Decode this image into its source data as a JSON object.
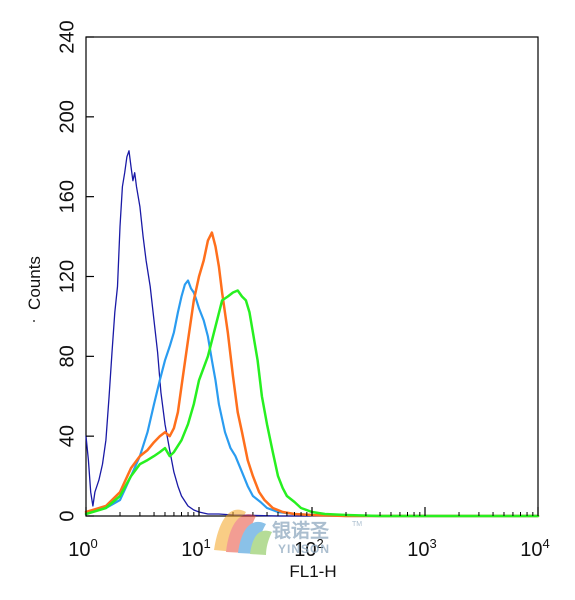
{
  "chart_data": {
    "type": "line",
    "xscale": "log",
    "xlim": [
      1,
      10000
    ],
    "ylim": [
      0,
      240
    ],
    "xlabel": "FL1-H",
    "ylabel": "Counts",
    "y_ticks": [
      0,
      40,
      80,
      120,
      160,
      200,
      240
    ],
    "x_ticks": [
      {
        "value": 1,
        "base": "10",
        "exp": "0"
      },
      {
        "value": 10,
        "base": "10",
        "exp": "1"
      },
      {
        "value": 100,
        "base": "10",
        "exp": "2"
      },
      {
        "value": 1000,
        "base": "10",
        "exp": "3"
      },
      {
        "value": 10000,
        "base": "10",
        "exp": "4"
      }
    ],
    "series": [
      {
        "color": "#1a1aa6",
        "width": 1.3,
        "x": [
          1,
          1.05,
          1.1,
          1.15,
          1.2,
          1.3,
          1.4,
          1.5,
          1.6,
          1.7,
          1.8,
          1.9,
          2.0,
          2.1,
          2.2,
          2.3,
          2.4,
          2.5,
          2.6,
          2.7,
          2.8,
          3.0,
          3.2,
          3.4,
          3.7,
          4.0,
          4.3,
          4.6,
          5.0,
          5.5,
          6.0,
          6.5,
          7.0,
          8.0,
          9.0,
          10,
          12,
          15,
          20,
          30,
          50,
          100,
          1000,
          10000
        ],
        "y": [
          40,
          28,
          12,
          5,
          12,
          18,
          26,
          38,
          60,
          82,
          102,
          115,
          145,
          165,
          172,
          180,
          183,
          175,
          168,
          172,
          165,
          155,
          140,
          128,
          115,
          98,
          82,
          62,
          46,
          33,
          22,
          15,
          10,
          5,
          3,
          2,
          1,
          1,
          0.5,
          0.3,
          0,
          0,
          0,
          0
        ]
      },
      {
        "color": "#2a9cf0",
        "width": 2.2,
        "x": [
          1,
          1.5,
          2,
          2.5,
          3,
          3.5,
          4,
          4.5,
          5,
          5.5,
          6,
          6.5,
          7,
          7.5,
          8,
          8.5,
          9,
          9.5,
          10,
          11,
          12,
          13,
          14,
          15,
          17,
          19,
          21,
          24,
          27,
          30,
          35,
          40,
          50,
          70,
          100,
          200,
          1000,
          10000
        ],
        "y": [
          2,
          4,
          8,
          20,
          30,
          42,
          56,
          68,
          78,
          85,
          92,
          102,
          110,
          116,
          118,
          114,
          112,
          108,
          104,
          98,
          90,
          78,
          68,
          56,
          42,
          34,
          30,
          22,
          15,
          10,
          7,
          4,
          2,
          1,
          0.5,
          0,
          0,
          0
        ]
      },
      {
        "color": "#ff6f1c",
        "width": 2.5,
        "x": [
          1,
          1.5,
          2,
          2.5,
          3,
          3.5,
          4,
          4.5,
          5,
          5.5,
          6,
          6.5,
          7,
          8,
          9,
          10,
          11,
          12,
          13,
          14,
          15,
          16,
          18,
          20,
          22,
          24,
          27,
          30,
          34,
          38,
          45,
          55,
          70,
          100,
          200,
          1000,
          10000
        ],
        "y": [
          2,
          5,
          12,
          24,
          30,
          33,
          37,
          40,
          42,
          40,
          44,
          52,
          65,
          88,
          108,
          120,
          128,
          138,
          142,
          135,
          125,
          112,
          92,
          70,
          52,
          42,
          28,
          20,
          12,
          8,
          4,
          2,
          1,
          0.5,
          0,
          0,
          0
        ]
      },
      {
        "color": "#27f020",
        "width": 2.5,
        "x": [
          1,
          1.5,
          2,
          2.5,
          3,
          3.5,
          4,
          4.5,
          5,
          5.5,
          6,
          7,
          8,
          9,
          10,
          12,
          14,
          16,
          18,
          20,
          22,
          24,
          26,
          28,
          30,
          33,
          36,
          40,
          45,
          50,
          55,
          60,
          70,
          80,
          100,
          130,
          200,
          400,
          1000,
          10000
        ],
        "y": [
          1,
          4,
          10,
          20,
          26,
          28,
          30,
          32,
          34,
          30,
          32,
          38,
          46,
          56,
          68,
          80,
          95,
          108,
          110,
          112,
          113,
          110,
          108,
          102,
          92,
          78,
          60,
          46,
          32,
          20,
          14,
          10,
          7,
          4,
          2,
          1,
          0.5,
          0,
          0,
          0
        ]
      }
    ]
  },
  "watermark": {
    "cn_text": "银诺圣",
    "en_text": "YINSON",
    "tm": "TM"
  }
}
